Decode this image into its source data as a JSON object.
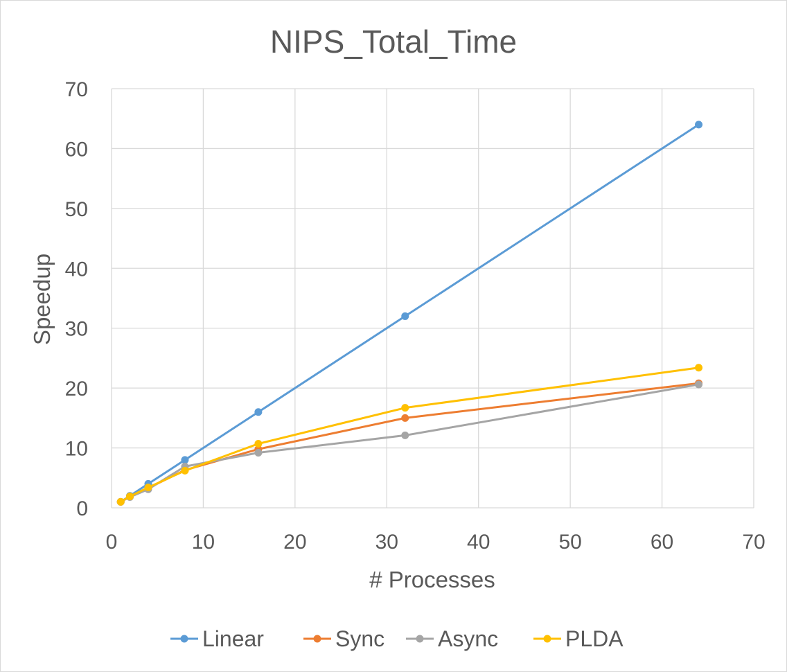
{
  "chart_data": {
    "type": "line",
    "title": "NIPS_Total_Time",
    "xlabel": "# Processes",
    "ylabel": "Speedup",
    "xlim": [
      0,
      70
    ],
    "ylim": [
      0,
      70
    ],
    "x_ticks": [
      0,
      10,
      20,
      30,
      40,
      50,
      60,
      70
    ],
    "y_ticks": [
      0,
      10,
      20,
      30,
      40,
      50,
      60,
      70
    ],
    "grid": true,
    "legend_position": "bottom",
    "x": [
      1,
      2,
      4,
      8,
      16,
      32,
      64
    ],
    "series": [
      {
        "name": "Linear",
        "color": "#5b9bd5",
        "values": [
          1,
          2,
          4,
          8,
          16,
          32,
          64
        ]
      },
      {
        "name": "Sync",
        "color": "#ed7d31",
        "values": [
          1,
          1.9,
          3.3,
          6.3,
          9.8,
          15,
          20.8
        ]
      },
      {
        "name": "Async",
        "color": "#a5a5a5",
        "values": [
          1,
          1.8,
          3.1,
          6.9,
          9.2,
          12.1,
          20.6
        ]
      },
      {
        "name": "PLDA",
        "color": "#ffc000",
        "values": [
          1,
          1.9,
          3.4,
          6.2,
          10.7,
          16.7,
          23.4
        ]
      }
    ]
  }
}
